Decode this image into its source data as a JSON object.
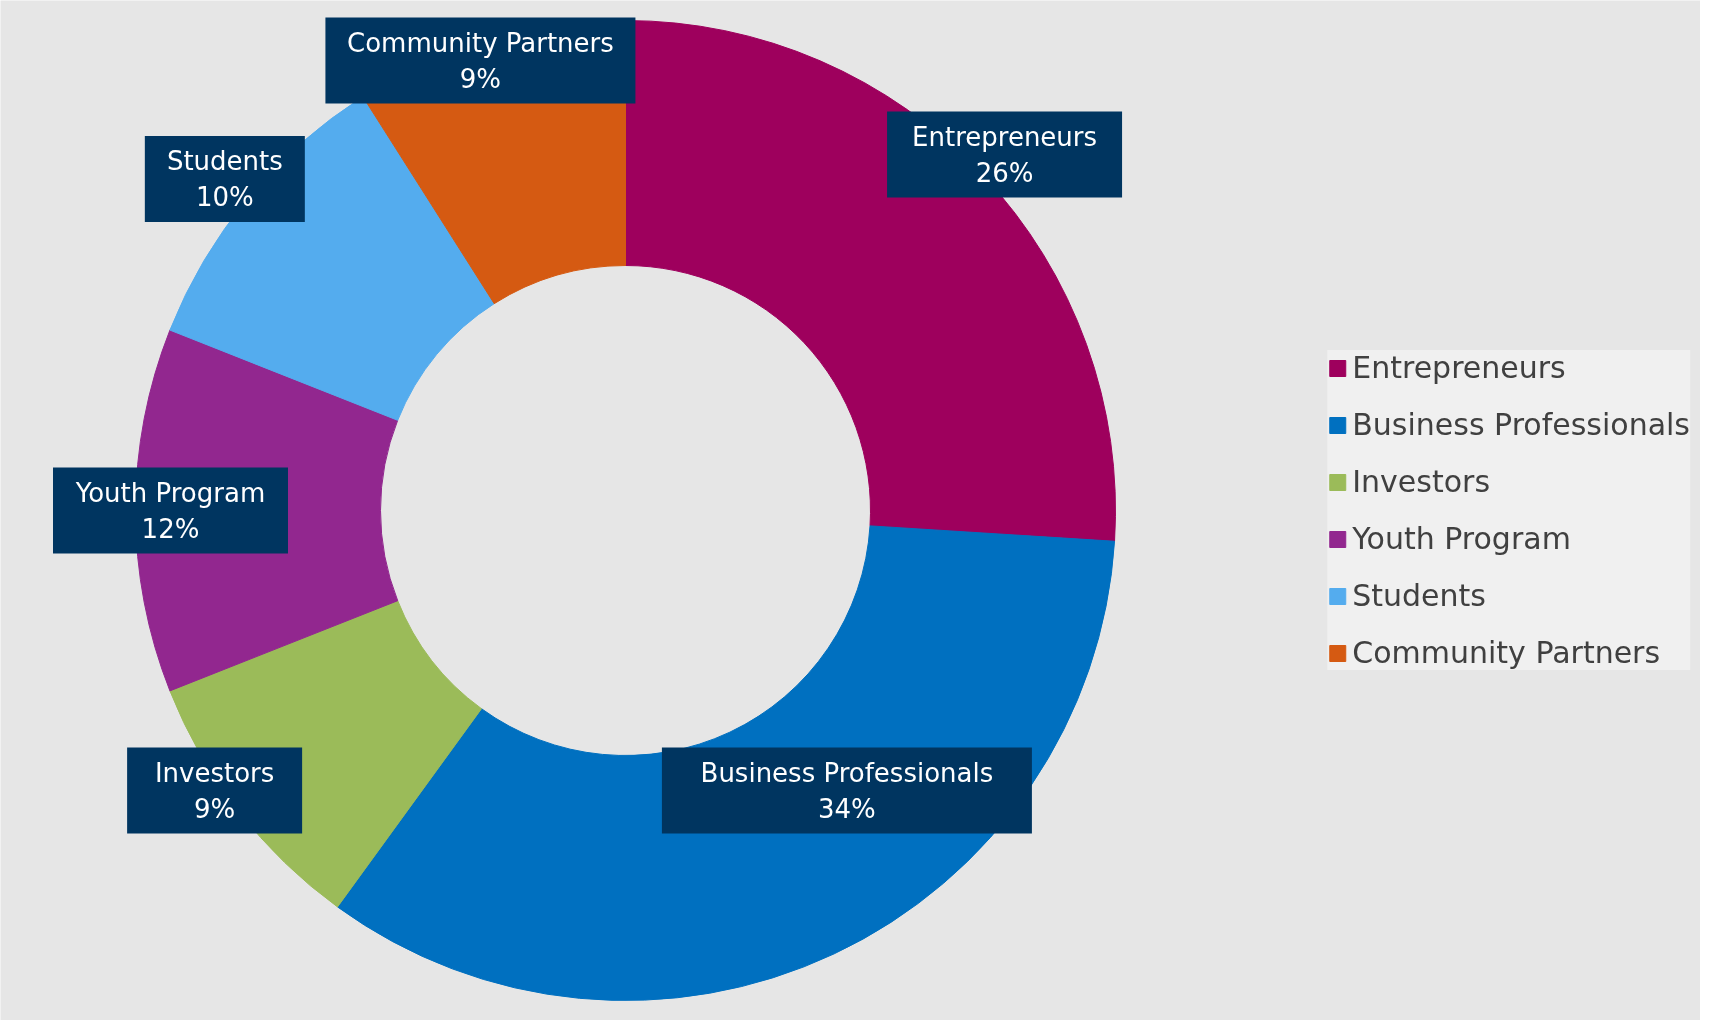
{
  "chart_data": {
    "type": "donut",
    "categories": [
      "Entrepreneurs",
      "Business Professionals",
      "Investors",
      "Youth Program",
      "Students",
      "Community Partners"
    ],
    "values": [
      26,
      34,
      9,
      12,
      10,
      9
    ],
    "value_labels": [
      "26%",
      "34%",
      "9%",
      "12%",
      "10%",
      "9%"
    ],
    "colors": [
      "#9e005d",
      "#0070c0",
      "#9bbb59",
      "#92278f",
      "#54acee",
      "#d55a12"
    ],
    "legend": "right"
  }
}
